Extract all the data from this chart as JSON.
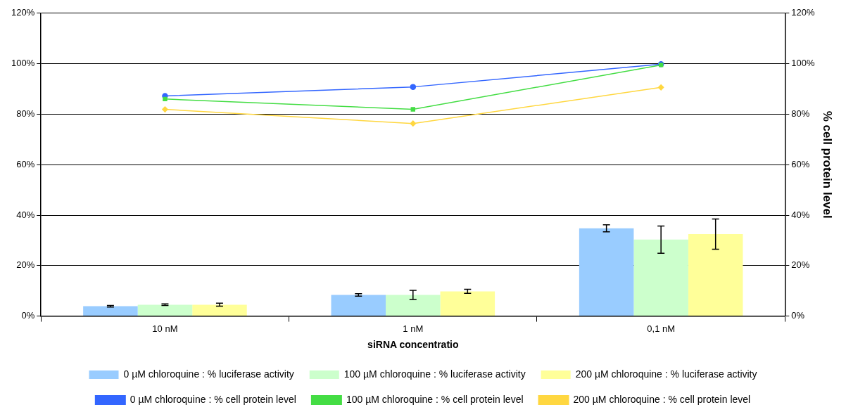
{
  "chart_data": {
    "type": "bar",
    "xlabel": "siRNA concentratio",
    "y2label": "% cell protein level",
    "categories": [
      "10 nM",
      "1 nM",
      "0,1 nM"
    ],
    "ylim": [
      0,
      120
    ],
    "yticks": [
      {
        "value": 0,
        "label": "0%"
      },
      {
        "value": 20,
        "label": "20%"
      },
      {
        "value": 40,
        "label": "40%"
      },
      {
        "value": 60,
        "label": "60%"
      },
      {
        "value": 80,
        "label": "80%"
      },
      {
        "value": 100,
        "label": "100%"
      },
      {
        "value": 120,
        "label": "120%"
      }
    ],
    "y2lim": [
      0,
      120
    ],
    "y2ticks": [
      {
        "value": 0,
        "label": "0%"
      },
      {
        "value": 20,
        "label": "20%"
      },
      {
        "value": 40,
        "label": "40%"
      },
      {
        "value": 60,
        "label": "60%"
      },
      {
        "value": 80,
        "label": "80%"
      },
      {
        "value": 100,
        "label": "100%"
      },
      {
        "value": 120,
        "label": "120%"
      }
    ],
    "grid": "y",
    "legend": "bottom",
    "series": [
      {
        "name": "0 µM chloroquine : % luciferase activity",
        "color": "#99ccff",
        "values": [
          3.9,
          8.4,
          34.8
        ],
        "errors": [
          0.3,
          0.5,
          1.4
        ]
      },
      {
        "name": "100 µM chloroquine : % luciferase activity",
        "color": "#ccffcc",
        "values": [
          4.5,
          8.4,
          30.3
        ],
        "errors": [
          0.3,
          1.8,
          5.4
        ]
      },
      {
        "name": "200 µM chloroquine : % luciferase activity",
        "color": "#ffff99",
        "values": [
          4.5,
          9.8,
          32.5
        ],
        "errors": [
          0.6,
          0.8,
          6.0
        ]
      },
      {
        "name": "0 µM chloroquine : % cell protein level",
        "type": "line",
        "axis": "y2",
        "color": "#3366ff",
        "marker": "circle",
        "values": [
          87.2,
          90.8,
          99.8
        ]
      },
      {
        "name": "100 µM chloroquine : % cell protein level",
        "type": "line",
        "axis": "y2",
        "color": "#44dd44",
        "marker": "square",
        "values": [
          86,
          81.9,
          99.5
        ]
      },
      {
        "name": "200 µM chloroquine : % cell protein level",
        "type": "line",
        "axis": "y2",
        "color": "#ffd740",
        "marker": "diamond",
        "values": [
          81.9,
          76.3,
          90.6
        ]
      }
    ]
  }
}
